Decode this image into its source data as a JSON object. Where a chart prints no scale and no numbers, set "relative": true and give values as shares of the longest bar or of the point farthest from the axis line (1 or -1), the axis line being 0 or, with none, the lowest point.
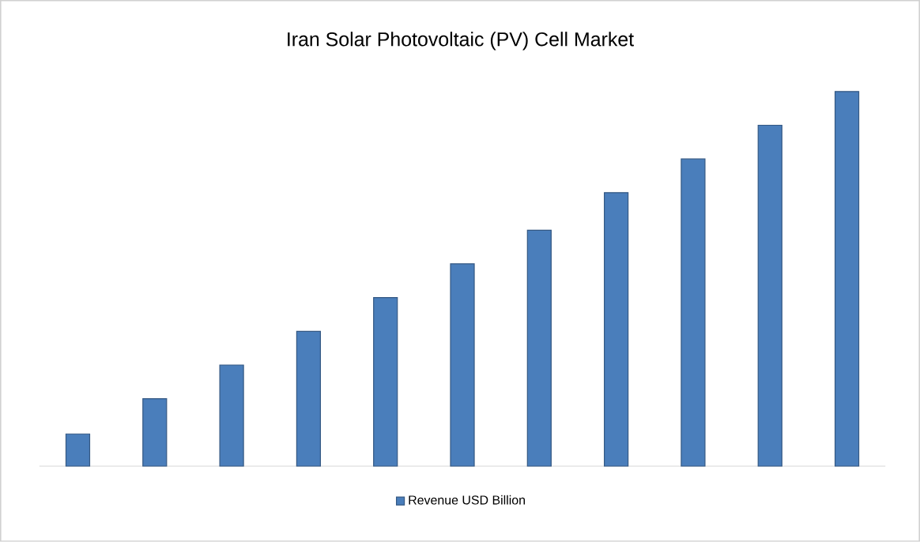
{
  "chart_data": {
    "type": "bar",
    "title": "Iran Solar Photovoltaic (PV) Cell Market",
    "categories": [
      null,
      null,
      null,
      null,
      null,
      null,
      null,
      null,
      null,
      null,
      null
    ],
    "relative": true,
    "legend": "bottom",
    "series": [
      {
        "name": "Revenue USD Billion",
        "color": "#4a7ebb",
        "values": [
          0.086,
          0.18,
          0.27,
          0.36,
          0.45,
          0.54,
          0.63,
          0.73,
          0.82,
          0.91,
          1
        ]
      }
    ]
  }
}
